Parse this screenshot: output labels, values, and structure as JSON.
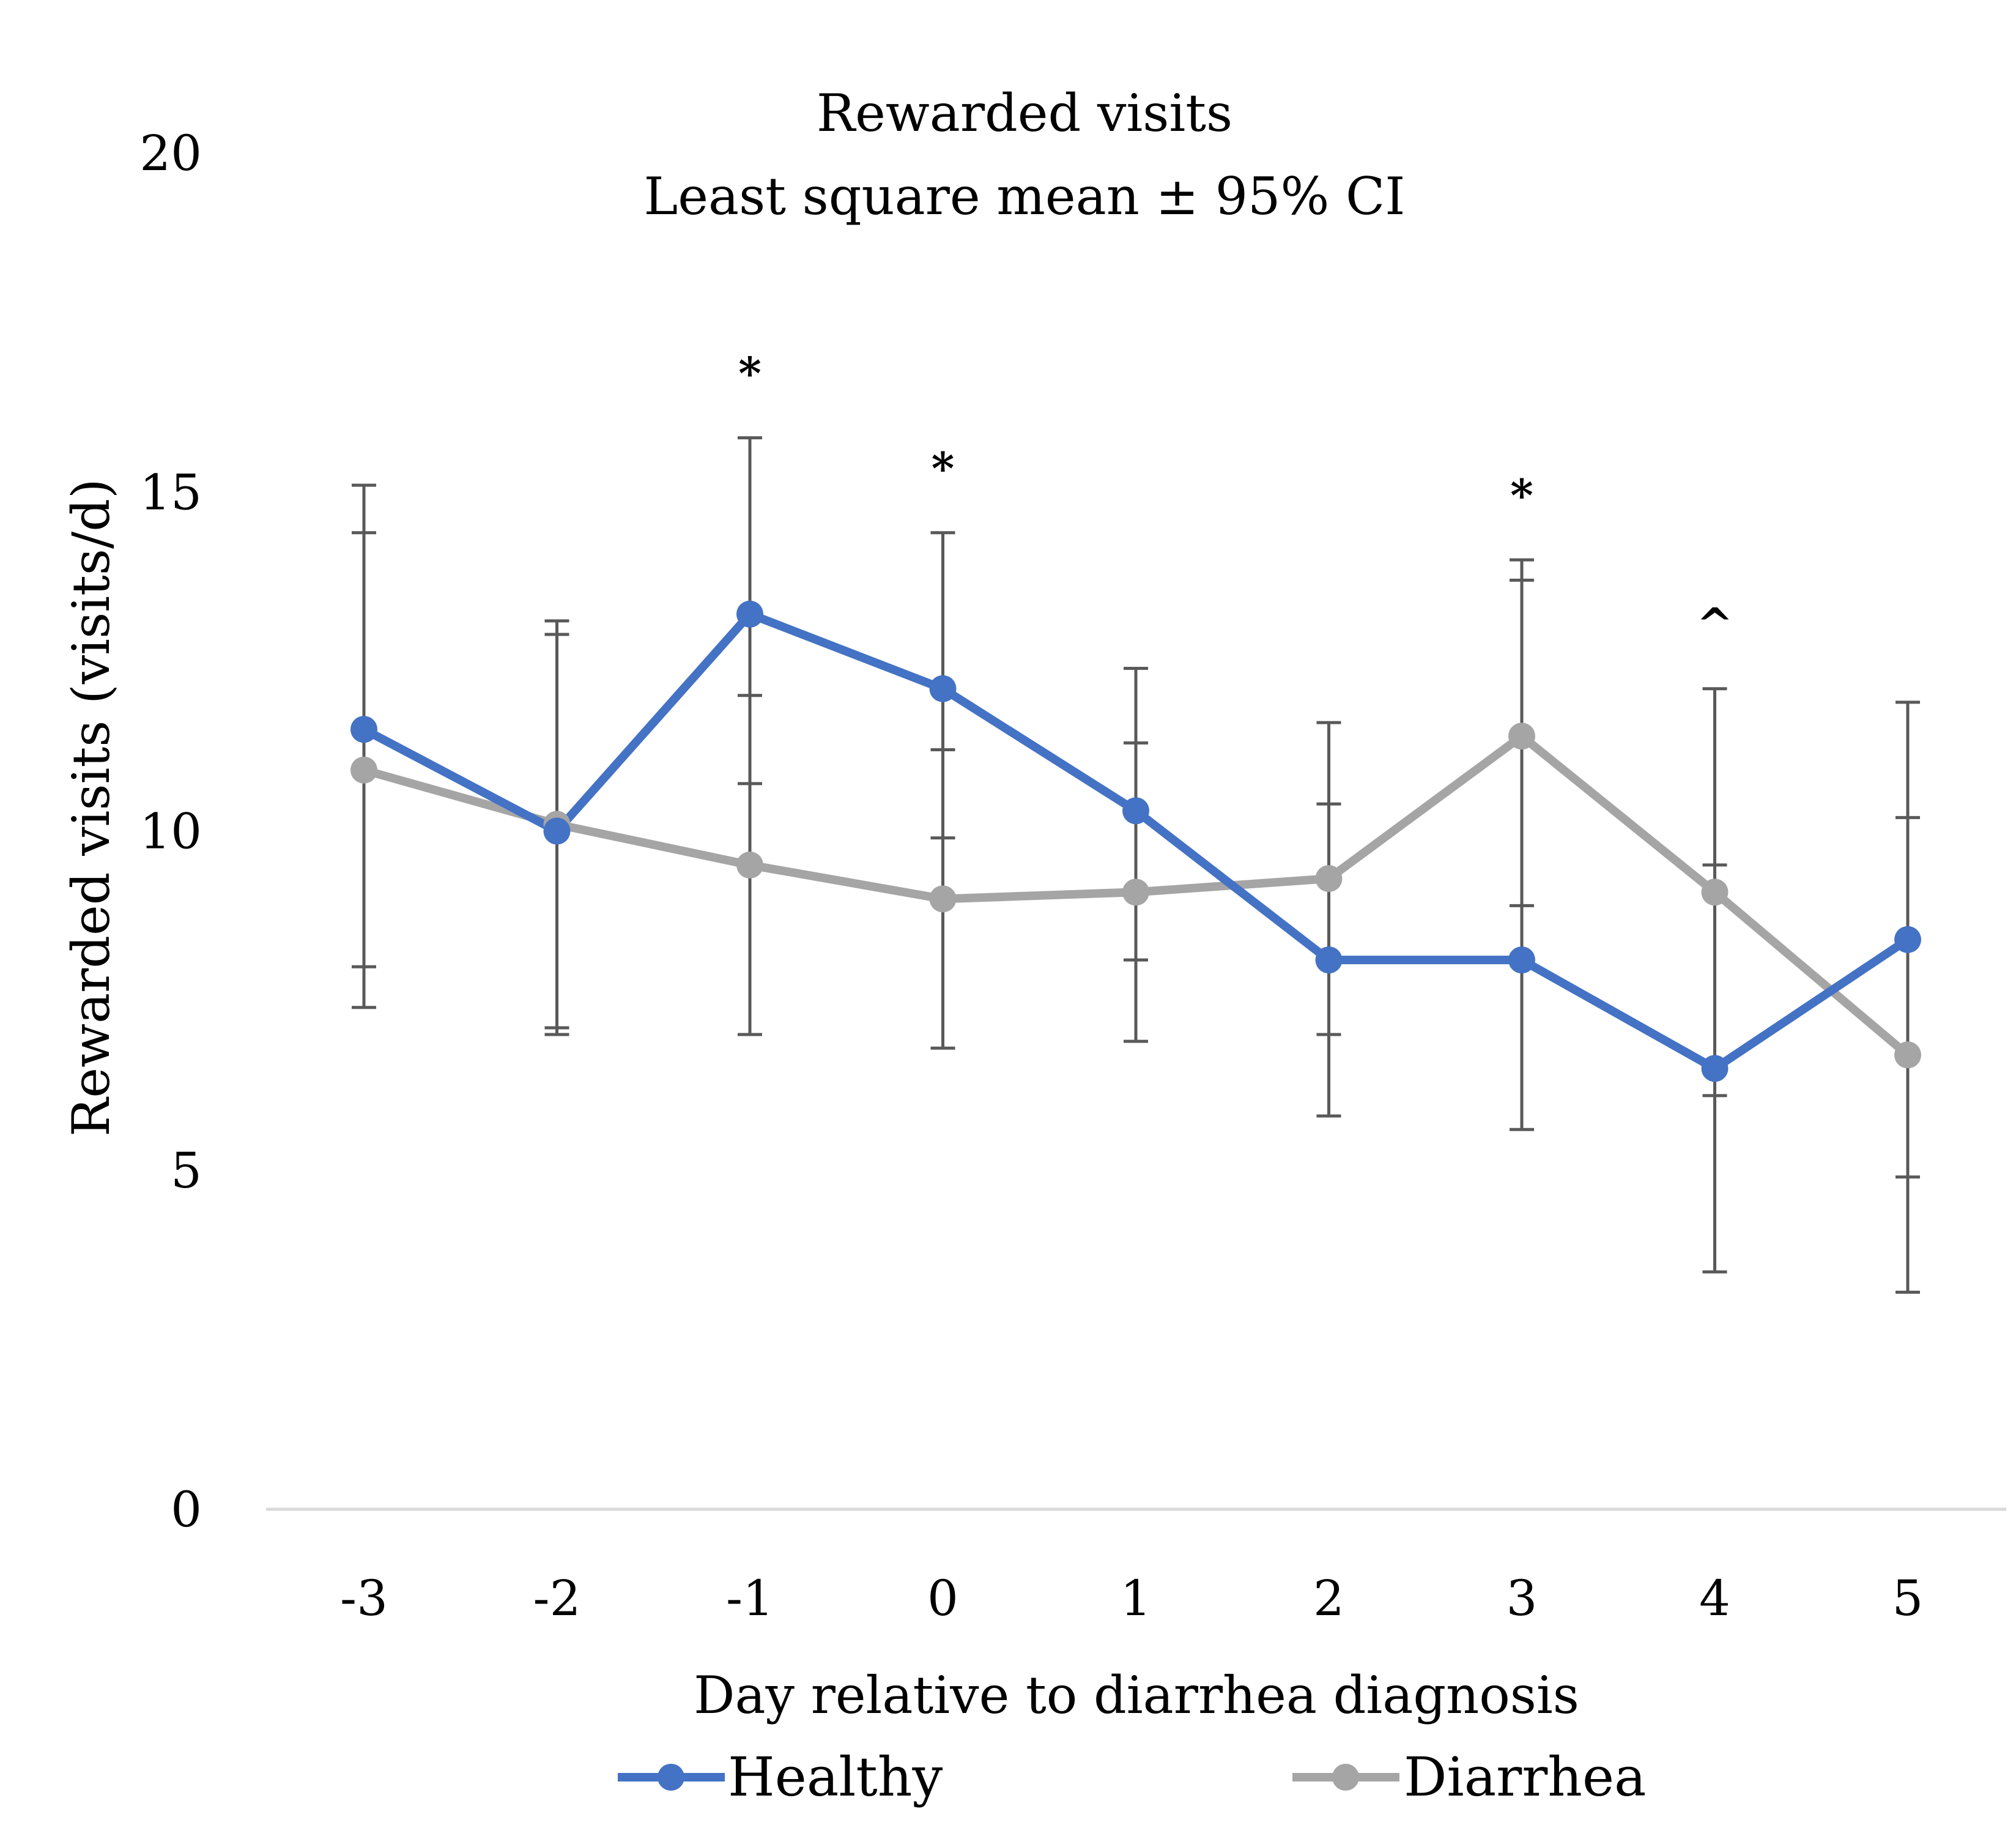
{
  "chart_data": {
    "type": "line",
    "title": "Rewarded visits",
    "subtitle": "Least square mean ± 95% CI",
    "xlabel": "Day relative to diarrhea diagnosis",
    "ylabel": "Rewarded visits (visits/d)",
    "categories": [
      "-3",
      "-2",
      "-1",
      "0",
      "1",
      "2",
      "3",
      "4",
      "5"
    ],
    "ylim": [
      0,
      20
    ],
    "yticks": [
      "0",
      "5",
      "10",
      "15",
      "20"
    ],
    "grid": false,
    "legend_position": "bottom",
    "series": [
      {
        "name": "Healthy",
        "color": "#4472C4",
        "values": [
          11.5,
          10.0,
          13.2,
          12.1,
          10.3,
          8.1,
          8.1,
          6.5,
          8.4
        ],
        "ci_lower": [
          8.0,
          7.1,
          10.7,
          9.9,
          8.1,
          5.8,
          5.6,
          3.5,
          4.9
        ],
        "ci_upper": [
          15.1,
          12.9,
          15.8,
          14.4,
          12.4,
          10.4,
          13.7,
          9.5,
          11.9
        ]
      },
      {
        "name": "Diarrhea",
        "color": "#A5A5A5",
        "values": [
          10.9,
          10.1,
          9.5,
          9.0,
          9.1,
          9.3,
          11.4,
          9.1,
          6.7
        ],
        "ci_lower": [
          7.4,
          7.0,
          7.0,
          6.8,
          6.9,
          7.0,
          8.9,
          6.1,
          3.2
        ],
        "ci_upper": [
          14.4,
          13.1,
          12.0,
          11.2,
          11.3,
          11.6,
          14.0,
          12.1,
          10.2
        ]
      }
    ],
    "annotations": [
      {
        "category": "-1",
        "text": "*"
      },
      {
        "category": "0",
        "text": "*"
      },
      {
        "category": "3",
        "text": "*"
      },
      {
        "category": "4",
        "text": "^"
      }
    ]
  }
}
